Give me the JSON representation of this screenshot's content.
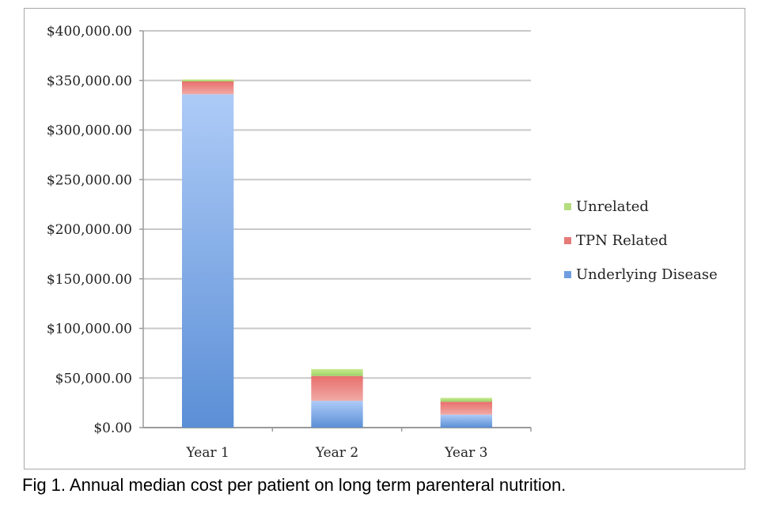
{
  "chart_data": {
    "type": "bar",
    "stacked": true,
    "categories": [
      "Year 1",
      "Year 2",
      "Year 3"
    ],
    "series": [
      {
        "name": "Underlying Disease",
        "values": [
          336000,
          27000,
          13000
        ],
        "color": "#6f9de0"
      },
      {
        "name": "TPN Related",
        "values": [
          13000,
          25000,
          13000
        ],
        "color": "#e57a78"
      },
      {
        "name": "Unrelated",
        "values": [
          2000,
          7000,
          4000
        ],
        "color": "#b4dd7e"
      }
    ],
    "ylim": [
      0,
      400000
    ],
    "yticks": [
      0,
      50000,
      100000,
      150000,
      200000,
      250000,
      300000,
      350000,
      400000
    ],
    "ytick_labels": [
      "$0.00",
      "$50,000.00",
      "$100,000.00",
      "$150,000.00",
      "$200,000.00",
      "$250,000.00",
      "$300,000.00",
      "$350,000.00",
      "$400,000.00"
    ],
    "grid": true,
    "legend_position": "right",
    "legend_order": [
      "Unrelated",
      "TPN Related",
      "Underlying Disease"
    ]
  },
  "caption": "Fig 1. Annual median cost per patient on long term parenteral nutrition."
}
